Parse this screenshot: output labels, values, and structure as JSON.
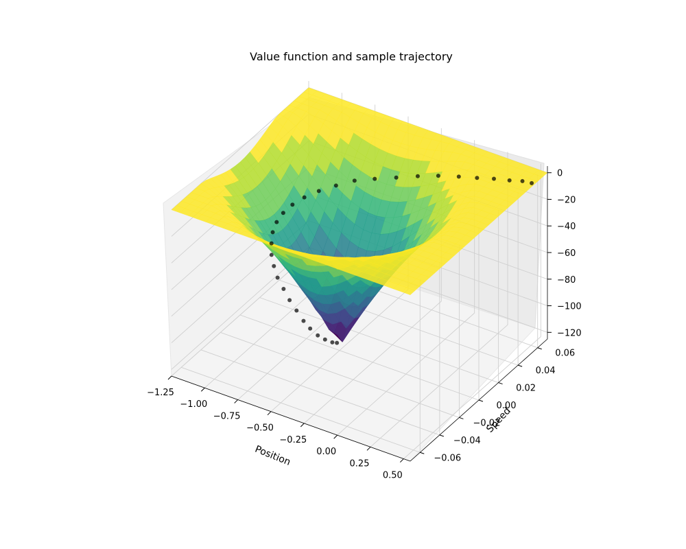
{
  "chart_data": {
    "type": "surface3d",
    "title": "Value function and sample trajectory",
    "xlabel": "Position",
    "ylabel": "Speed",
    "zlabel": "",
    "xlim": [
      -1.25,
      0.55
    ],
    "ylim": [
      -0.07,
      0.07
    ],
    "zlim": [
      -125,
      5
    ],
    "x_ticks": [
      "−1.25",
      "−1.00",
      "−0.75",
      "−0.50",
      "−0.25",
      "0.00",
      "0.25",
      "0.50"
    ],
    "x_tick_values": [
      -1.25,
      -1.0,
      -0.75,
      -0.5,
      -0.25,
      0.0,
      0.25,
      0.5
    ],
    "y_ticks": [
      "−0.06",
      "−0.04",
      "−0.02",
      "0.00",
      "0.02",
      "0.04",
      "0.06"
    ],
    "y_tick_values": [
      -0.06,
      -0.04,
      -0.02,
      0.0,
      0.02,
      0.04,
      0.06
    ],
    "z_ticks": [
      "−120",
      "−100",
      "−80",
      "−60",
      "−40",
      "−20",
      "0"
    ],
    "z_tick_values": [
      -120,
      -100,
      -80,
      -60,
      -40,
      -20,
      0
    ],
    "grid": true,
    "colormap": "viridis",
    "surface": {
      "description_values": {
        "min_value": -122,
        "max_value": 0,
        "minimum_location": {
          "position": -0.5,
          "speed": 0.0
        }
      }
    },
    "trajectory": {
      "marker_color": "#000000",
      "points": [
        {
          "position": -0.52,
          "speed": 0.0,
          "value": -120
        },
        {
          "position": -0.54,
          "speed": -0.002,
          "value": -119
        },
        {
          "position": -0.58,
          "speed": -0.004,
          "value": -117
        },
        {
          "position": -0.62,
          "speed": -0.006,
          "value": -114
        },
        {
          "position": -0.67,
          "speed": -0.007,
          "value": -110
        },
        {
          "position": -0.72,
          "speed": -0.007,
          "value": -106
        },
        {
          "position": -0.78,
          "speed": -0.006,
          "value": -101
        },
        {
          "position": -0.84,
          "speed": -0.005,
          "value": -96
        },
        {
          "position": -0.9,
          "speed": -0.003,
          "value": -91
        },
        {
          "position": -0.96,
          "speed": -0.001,
          "value": -86
        },
        {
          "position": -1.01,
          "speed": 0.002,
          "value": -81
        },
        {
          "position": -1.05,
          "speed": 0.005,
          "value": -76
        },
        {
          "position": -1.08,
          "speed": 0.009,
          "value": -71
        },
        {
          "position": -1.1,
          "speed": 0.013,
          "value": -66
        },
        {
          "position": -1.1,
          "speed": 0.017,
          "value": -61
        },
        {
          "position": -1.08,
          "speed": 0.021,
          "value": -56
        },
        {
          "position": -1.04,
          "speed": 0.025,
          "value": -51
        },
        {
          "position": -0.98,
          "speed": 0.029,
          "value": -46
        },
        {
          "position": -0.9,
          "speed": 0.033,
          "value": -41
        },
        {
          "position": -0.8,
          "speed": 0.037,
          "value": -36
        },
        {
          "position": -0.69,
          "speed": 0.041,
          "value": -31
        },
        {
          "position": -0.56,
          "speed": 0.044,
          "value": -27
        },
        {
          "position": -0.42,
          "speed": 0.047,
          "value": -23
        },
        {
          "position": -0.28,
          "speed": 0.05,
          "value": -19
        },
        {
          "position": -0.14,
          "speed": 0.052,
          "value": -15
        },
        {
          "position": 0.0,
          "speed": 0.054,
          "value": -12
        },
        {
          "position": 0.13,
          "speed": 0.055,
          "value": -9
        },
        {
          "position": 0.25,
          "speed": 0.056,
          "value": -6
        },
        {
          "position": 0.36,
          "speed": 0.057,
          "value": -4
        },
        {
          "position": 0.45,
          "speed": 0.058,
          "value": -2
        },
        {
          "position": 0.52,
          "speed": 0.058,
          "value": -1
        }
      ]
    }
  }
}
